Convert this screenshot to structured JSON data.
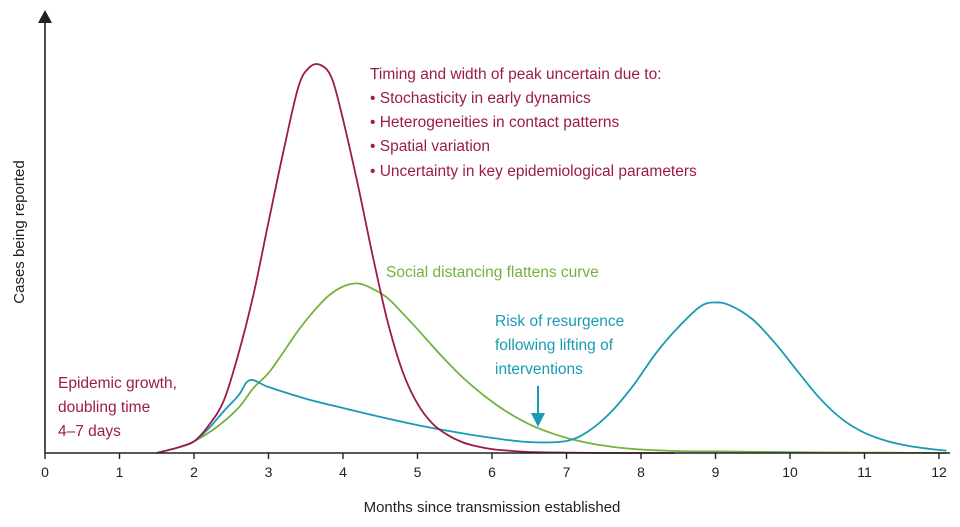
{
  "chart_data": {
    "type": "line",
    "title": "",
    "xlabel": "Months since transmission established",
    "ylabel": "Cases being reported",
    "xlim": [
      0,
      12.1
    ],
    "ylim": [
      0,
      100
    ],
    "x_ticks": [
      0,
      1,
      2,
      3,
      4,
      5,
      6,
      7,
      8,
      9,
      10,
      11,
      12
    ],
    "x_tick_labels": [
      "0",
      "1",
      "2",
      "3",
      "4",
      "5",
      "6",
      "7",
      "8",
      "9",
      "10",
      "11",
      "12"
    ],
    "y_ticks": [],
    "grid": false,
    "legend": "none",
    "colors": {
      "unmitigated": "#9b1b4c",
      "distancing": "#74b23d",
      "resurgence": "#1a9ab3",
      "axis": "#222222"
    },
    "series": [
      {
        "key": "unmitigated",
        "x": [
          1.5,
          1.8,
          2.0,
          2.2,
          2.4,
          2.6,
          2.8,
          3.0,
          3.2,
          3.4,
          3.55,
          3.7,
          3.85,
          4.0,
          4.2,
          4.4,
          4.6,
          4.8,
          5.0,
          5.2,
          5.4,
          5.6,
          5.8,
          6.0,
          6.3,
          6.6,
          7.0,
          7.5,
          8.0,
          8.45
        ],
        "y": [
          0,
          1.5,
          3.0,
          7.2,
          13.5,
          25.8,
          41.0,
          59.5,
          77.7,
          94.3,
          99.4,
          100,
          96.6,
          86.0,
          69.1,
          50.7,
          33.8,
          21.0,
          12.7,
          7.6,
          4.7,
          2.8,
          1.7,
          1.0,
          0.5,
          0.2,
          0.1,
          0,
          0,
          0
        ]
      },
      {
        "key": "distancing",
        "x": [
          1.5,
          1.8,
          2.0,
          2.3,
          2.6,
          2.8,
          3.0,
          3.2,
          3.4,
          3.6,
          3.8,
          4.0,
          4.2,
          4.4,
          4.6,
          4.8,
          5.0,
          5.3,
          5.6,
          5.9,
          6.2,
          6.5,
          6.8,
          7.1,
          7.4,
          7.7,
          8.0,
          8.5,
          9.0,
          10.0,
          11.0,
          12.1
        ],
        "y": [
          0,
          1.5,
          3.0,
          6.6,
          11.7,
          16.8,
          20.6,
          26.0,
          31.6,
          36.4,
          40.4,
          42.9,
          43.7,
          42.3,
          39.9,
          36.0,
          31.9,
          25.5,
          19.6,
          14.7,
          10.6,
          7.4,
          5.1,
          3.4,
          2.2,
          1.4,
          0.9,
          0.5,
          0.4,
          0.2,
          0.1,
          0
        ]
      },
      {
        "key": "resurgence",
        "x": [
          1.5,
          1.8,
          2.0,
          2.2,
          2.4,
          2.6,
          2.75,
          3.0,
          3.5,
          4.0,
          4.5,
          5.0,
          5.5,
          6.0,
          6.5,
          7.0,
          7.3,
          7.6,
          7.9,
          8.2,
          8.5,
          8.8,
          9.0,
          9.2,
          9.5,
          9.8,
          10.1,
          10.4,
          10.7,
          11.0,
          11.3,
          11.6,
          11.9,
          12.1
        ],
        "y": [
          0,
          1.5,
          3.0,
          6.4,
          10.8,
          14.9,
          18.8,
          17.0,
          14.0,
          11.6,
          9.3,
          7.2,
          5.4,
          3.9,
          2.8,
          3.1,
          5.7,
          10.6,
          17.5,
          25.7,
          32.4,
          37.8,
          38.8,
          38.0,
          34.4,
          28.3,
          21.1,
          14.1,
          8.7,
          5.2,
          3.1,
          1.8,
          1.0,
          0.6
        ]
      }
    ],
    "annotations": {
      "uncertainty_title": "Timing and width of peak uncertain due to:",
      "uncertainty_items": [
        "• Stochasticity in early dynamics",
        "• Heterogeneities in contact patterns",
        "• Spatial variation",
        "• Uncertainty in key epidemiological parameters"
      ],
      "distancing": "Social distancing flattens curve",
      "resurgence": [
        "Risk of resurgence",
        "following lifting of",
        "interventions"
      ],
      "growth": [
        "Epidemic growth,",
        "doubling time",
        "4–7 days"
      ]
    }
  }
}
